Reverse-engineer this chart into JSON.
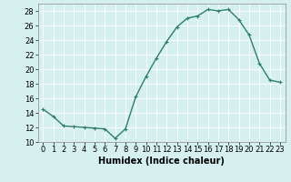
{
  "x": [
    0,
    1,
    2,
    3,
    4,
    5,
    6,
    7,
    8,
    9,
    10,
    11,
    12,
    13,
    14,
    15,
    16,
    17,
    18,
    19,
    20,
    21,
    22,
    23
  ],
  "y": [
    14.5,
    13.5,
    12.2,
    12.1,
    12.0,
    11.9,
    11.8,
    10.5,
    11.8,
    16.2,
    19.0,
    21.5,
    23.8,
    25.8,
    27.0,
    27.3,
    28.2,
    28.0,
    28.2,
    26.8,
    24.7,
    20.8,
    18.5,
    18.2
  ],
  "line_color": "#2e7d6e",
  "marker": "+",
  "bg_color": "#d6f0f0",
  "grid_color": "#ffffff",
  "xlabel": "Humidex (Indice chaleur)",
  "xlim": [
    -0.5,
    23.5
  ],
  "ylim": [
    10,
    29
  ],
  "yticks": [
    10,
    12,
    14,
    16,
    18,
    20,
    22,
    24,
    26,
    28
  ],
  "xticks": [
    0,
    1,
    2,
    3,
    4,
    5,
    6,
    7,
    8,
    9,
    10,
    11,
    12,
    13,
    14,
    15,
    16,
    17,
    18,
    19,
    20,
    21,
    22,
    23
  ],
  "xlabel_fontsize": 7,
  "tick_fontsize": 6,
  "linewidth": 1.0,
  "markersize": 3
}
